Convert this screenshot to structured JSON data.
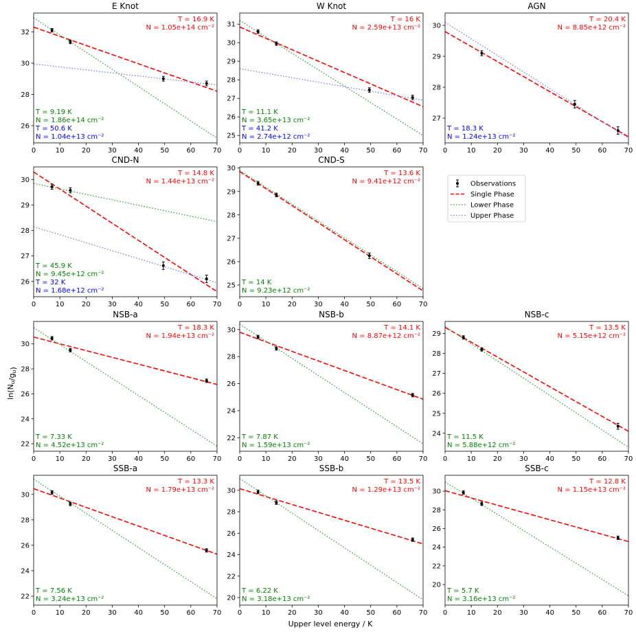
{
  "figure": {
    "xlabel": "Upper level energy  /  K",
    "ylabel": "ln(N_u/g_u)"
  },
  "legend": {
    "placement": "right of middle row",
    "items": [
      {
        "label": "Observations",
        "style": "errorbar",
        "color": "#000000"
      },
      {
        "label": "Single Phase",
        "style": "dashed",
        "color": "#ff0000"
      },
      {
        "label": "Lower Phase",
        "style": "dotted",
        "color": "#2ca02c"
      },
      {
        "label": "Upper Phase",
        "style": "dotted",
        "color": "#7777ee"
      }
    ]
  },
  "colors": {
    "single": "#ff0000",
    "lower": "#2ca02c",
    "upper": "#7777ee",
    "single_text": "#ff0000",
    "lower_text": "#008000",
    "upper_text": "#0000ff"
  },
  "chart_data": [
    {
      "type": "scatter",
      "title": "E Knot",
      "xlim": [
        0,
        70
      ],
      "ylim": [
        24.9,
        33.2
      ],
      "xticks": [
        0,
        10,
        20,
        30,
        40,
        50,
        60,
        70
      ],
      "yticks": [
        26,
        28,
        30,
        32
      ],
      "observations": [
        {
          "x": 7,
          "y": 32.1,
          "err": 0.1
        },
        {
          "x": 14,
          "y": 31.35,
          "err": 0.1
        },
        {
          "x": 49.5,
          "y": 29.0,
          "err": 0.15
        },
        {
          "x": 66,
          "y": 28.7,
          "err": 0.15
        }
      ],
      "fits": [
        {
          "name": "Single Phase",
          "y0": 32.3,
          "y70": 28.2
        },
        {
          "name": "Lower Phase",
          "y0": 32.9,
          "y70": 25.2
        },
        {
          "name": "Upper Phase",
          "y0": 29.95,
          "y70": 28.6
        }
      ],
      "labels": [
        {
          "phase": "single",
          "T": "T = 16.9 K",
          "N": "N = 1.05e+14 cm⁻²"
        },
        {
          "phase": "lower",
          "T": "T = 9.19 K",
          "N": "N = 1.86e+14 cm⁻²"
        },
        {
          "phase": "upper",
          "T": "T = 50.6 K",
          "N": "N = 1.04e+13 cm⁻²"
        }
      ]
    },
    {
      "type": "scatter",
      "title": "W Knot",
      "xlim": [
        0,
        70
      ],
      "ylim": [
        24.6,
        31.6
      ],
      "xticks": [
        0,
        10,
        20,
        30,
        40,
        50,
        60,
        70
      ],
      "yticks": [
        25,
        26,
        27,
        28,
        29,
        30,
        31
      ],
      "observations": [
        {
          "x": 7,
          "y": 30.6,
          "err": 0.1
        },
        {
          "x": 14,
          "y": 29.95,
          "err": 0.08
        },
        {
          "x": 49.5,
          "y": 27.45,
          "err": 0.12
        },
        {
          "x": 66,
          "y": 27.05,
          "err": 0.12
        }
      ],
      "fits": [
        {
          "name": "Single Phase",
          "y0": 30.85,
          "y70": 26.55
        },
        {
          "name": "Lower Phase",
          "y0": 31.2,
          "y70": 25.0
        },
        {
          "name": "Upper Phase",
          "y0": 28.6,
          "y70": 26.9
        }
      ],
      "labels": [
        {
          "phase": "single",
          "T": "T = 16 K",
          "N": "N = 2.59e+13 cm⁻²"
        },
        {
          "phase": "lower",
          "T": "T = 11.1 K",
          "N": "N = 3.65e+13 cm⁻²"
        },
        {
          "phase": "upper",
          "T": "T = 41.2 K",
          "N": "N = 2.74e+12 cm⁻²"
        }
      ]
    },
    {
      "type": "scatter",
      "title": "AGN",
      "xlim": [
        0,
        70
      ],
      "ylim": [
        26.2,
        30.4
      ],
      "xticks": [
        0,
        10,
        20,
        30,
        40,
        50,
        60,
        70
      ],
      "yticks": [
        27,
        28,
        29,
        30
      ],
      "observations": [
        {
          "x": 14,
          "y": 29.1,
          "err": 0.08
        },
        {
          "x": 49.5,
          "y": 27.45,
          "err": 0.12
        },
        {
          "x": 66,
          "y": 26.6,
          "err": 0.12
        }
      ],
      "fits": [
        {
          "name": "Single Phase",
          "y0": 29.8,
          "y70": 26.4
        },
        {
          "name": "Upper Phase",
          "y0": 30.1,
          "y70": 26.35
        }
      ],
      "labels": [
        {
          "phase": "single",
          "T": "T = 20.4 K",
          "N": "N = 8.85e+12 cm⁻²"
        },
        {
          "phase": "upper",
          "T": "T = 18.3 K",
          "N": "N = 1.24e+13 cm⁻²"
        }
      ]
    },
    {
      "type": "scatter",
      "title": "CND-N",
      "xlim": [
        0,
        70
      ],
      "ylim": [
        25.4,
        30.5
      ],
      "xticks": [
        0,
        10,
        20,
        30,
        40,
        50,
        60,
        70
      ],
      "yticks": [
        26,
        27,
        28,
        29,
        30
      ],
      "observations": [
        {
          "x": 7,
          "y": 29.72,
          "err": 0.1
        },
        {
          "x": 14,
          "y": 29.58,
          "err": 0.1
        },
        {
          "x": 49.5,
          "y": 26.62,
          "err": 0.15
        },
        {
          "x": 66,
          "y": 26.1,
          "err": 0.15
        }
      ],
      "fits": [
        {
          "name": "Single Phase",
          "y0": 30.3,
          "y70": 25.6
        },
        {
          "name": "Lower Phase",
          "y0": 29.85,
          "y70": 28.35
        },
        {
          "name": "Upper Phase",
          "y0": 28.15,
          "y70": 25.95
        }
      ],
      "labels": [
        {
          "phase": "single",
          "T": "T = 14.8 K",
          "N": "N = 1.44e+13 cm⁻²"
        },
        {
          "phase": "lower",
          "T": "T = 45.9 K",
          "N": "N = 9.45e+12 cm⁻²"
        },
        {
          "phase": "upper",
          "T": "T = 32 K",
          "N": "N = 1.68e+12 cm⁻²"
        }
      ]
    },
    {
      "type": "scatter",
      "title": "CND-S",
      "xlim": [
        0,
        70
      ],
      "ylim": [
        24.5,
        30.05
      ],
      "xticks": [
        0,
        10,
        20,
        30,
        40,
        50,
        60,
        70
      ],
      "yticks": [
        25,
        26,
        27,
        28,
        29,
        30
      ],
      "observations": [
        {
          "x": 7,
          "y": 29.35,
          "err": 0.08
        },
        {
          "x": 14,
          "y": 28.85,
          "err": 0.08
        },
        {
          "x": 49.5,
          "y": 26.25,
          "err": 0.12
        }
      ],
      "fits": [
        {
          "name": "Single Phase",
          "y0": 29.85,
          "y70": 24.75
        },
        {
          "name": "Lower Phase",
          "y0": 29.9,
          "y70": 24.85
        }
      ],
      "labels": [
        {
          "phase": "single",
          "T": "T = 13.6 K",
          "N": "N = 9.41e+12 cm⁻²"
        },
        {
          "phase": "lower",
          "T": "T = 14 K",
          "N": "N = 9.23e+12 cm⁻²"
        }
      ]
    },
    {
      "type": "scatter",
      "title": "NSB-a",
      "xlim": [
        0,
        70
      ],
      "ylim": [
        21.4,
        31.8
      ],
      "xticks": [
        0,
        10,
        20,
        30,
        40,
        50,
        60,
        70
      ],
      "yticks": [
        22,
        24,
        26,
        28,
        30
      ],
      "observations": [
        {
          "x": 7,
          "y": 30.45,
          "err": 0.1
        },
        {
          "x": 14,
          "y": 29.5,
          "err": 0.08
        },
        {
          "x": 66,
          "y": 27.05,
          "err": 0.1
        }
      ],
      "fits": [
        {
          "name": "Single Phase",
          "y0": 30.55,
          "y70": 26.75
        },
        {
          "name": "Lower Phase",
          "y0": 31.3,
          "y70": 21.8
        }
      ],
      "labels": [
        {
          "phase": "single",
          "T": "T = 18.3 K",
          "N": "N = 1.94e+13 cm⁻²"
        },
        {
          "phase": "lower",
          "T": "T = 7.33 K",
          "N": "N = 4.52e+13 cm⁻²"
        }
      ]
    },
    {
      "type": "scatter",
      "title": "NSB-b",
      "xlim": [
        0,
        70
      ],
      "ylim": [
        21.0,
        30.6
      ],
      "xticks": [
        0,
        10,
        20,
        30,
        40,
        50,
        60,
        70
      ],
      "yticks": [
        22,
        24,
        26,
        28,
        30
      ],
      "observations": [
        {
          "x": 7,
          "y": 29.45,
          "err": 0.1
        },
        {
          "x": 14,
          "y": 28.6,
          "err": 0.08
        },
        {
          "x": 66,
          "y": 25.15,
          "err": 0.12
        }
      ],
      "fits": [
        {
          "name": "Single Phase",
          "y0": 29.8,
          "y70": 24.85
        },
        {
          "name": "Lower Phase",
          "y0": 30.4,
          "y70": 21.55
        }
      ],
      "labels": [
        {
          "phase": "single",
          "T": "T = 14.1 K",
          "N": "N = 8.87e+12 cm⁻²"
        },
        {
          "phase": "lower",
          "T": "T = 7.87 K",
          "N": "N = 1.59e+13 cm⁻²"
        }
      ]
    },
    {
      "type": "scatter",
      "title": "NSB-c",
      "xlim": [
        0,
        70
      ],
      "ylim": [
        23.1,
        29.6
      ],
      "xticks": [
        0,
        10,
        20,
        30,
        40,
        50,
        60,
        70
      ],
      "yticks": [
        24,
        25,
        26,
        27,
        28,
        29
      ],
      "observations": [
        {
          "x": 7,
          "y": 28.8,
          "err": 0.08
        },
        {
          "x": 14,
          "y": 28.2,
          "err": 0.08
        },
        {
          "x": 66,
          "y": 24.35,
          "err": 0.15
        }
      ],
      "fits": [
        {
          "name": "Single Phase",
          "y0": 29.3,
          "y70": 24.1
        },
        {
          "name": "Lower Phase",
          "y0": 29.35,
          "y70": 23.3
        }
      ],
      "labels": [
        {
          "phase": "single",
          "T": "T = 13.5 K",
          "N": "N = 5.15e+12 cm⁻²"
        },
        {
          "phase": "lower",
          "T": "T = 11.5 K",
          "N": "N = 5.88e+12 cm⁻²"
        }
      ]
    },
    {
      "type": "scatter",
      "title": "SSB-a",
      "xlim": [
        0,
        70
      ],
      "ylim": [
        21.3,
        31.5
      ],
      "xticks": [
        0,
        10,
        20,
        30,
        40,
        50,
        60,
        70
      ],
      "yticks": [
        22,
        24,
        26,
        28,
        30
      ],
      "observations": [
        {
          "x": 7,
          "y": 30.15,
          "err": 0.1
        },
        {
          "x": 14,
          "y": 29.25,
          "err": 0.08
        },
        {
          "x": 66,
          "y": 25.6,
          "err": 0.12
        }
      ],
      "fits": [
        {
          "name": "Single Phase",
          "y0": 30.45,
          "y70": 25.3
        },
        {
          "name": "Lower Phase",
          "y0": 31.2,
          "y70": 21.8
        }
      ],
      "labels": [
        {
          "phase": "single",
          "T": "T = 13.3 K",
          "N": "N = 1.79e+13 cm⁻²"
        },
        {
          "phase": "lower",
          "T": "T = 7.56 K",
          "N": "N = 3.24e+13 cm⁻²"
        }
      ]
    },
    {
      "type": "scatter",
      "title": "SSB-b",
      "xlim": [
        0,
        70
      ],
      "ylim": [
        19.3,
        31.4
      ],
      "xticks": [
        0,
        10,
        20,
        30,
        40,
        50,
        60,
        70
      ],
      "yticks": [
        20,
        22,
        24,
        26,
        28,
        30
      ],
      "observations": [
        {
          "x": 7,
          "y": 29.85,
          "err": 0.1
        },
        {
          "x": 14,
          "y": 28.85,
          "err": 0.08
        },
        {
          "x": 66,
          "y": 25.4,
          "err": 0.12
        }
      ],
      "fits": [
        {
          "name": "Single Phase",
          "y0": 30.15,
          "y70": 25.0
        },
        {
          "name": "Lower Phase",
          "y0": 31.1,
          "y70": 19.8
        }
      ],
      "labels": [
        {
          "phase": "single",
          "T": "T = 13.5 K",
          "N": "N = 1.29e+13 cm⁻²"
        },
        {
          "phase": "lower",
          "T": "T = 6.22 K",
          "N": "N = 3.18e+13 cm⁻²"
        }
      ]
    },
    {
      "type": "scatter",
      "title": "SSB-c",
      "xlim": [
        0,
        70
      ],
      "ylim": [
        17.8,
        31.7
      ],
      "xticks": [
        0,
        10,
        20,
        30,
        40,
        50,
        60,
        70
      ],
      "yticks": [
        20,
        22,
        24,
        26,
        28,
        30
      ],
      "observations": [
        {
          "x": 7,
          "y": 29.85,
          "err": 0.1
        },
        {
          "x": 14,
          "y": 28.65,
          "err": 0.08
        },
        {
          "x": 66,
          "y": 25.0,
          "err": 0.12
        }
      ],
      "fits": [
        {
          "name": "Single Phase",
          "y0": 30.05,
          "y70": 24.6
        },
        {
          "name": "Lower Phase",
          "y0": 31.0,
          "y70": 18.8
        }
      ],
      "labels": [
        {
          "phase": "single",
          "T": "T = 12.8 K",
          "N": "N = 1.15e+13 cm⁻²"
        },
        {
          "phase": "lower",
          "T": "T = 5.7 K",
          "N": "N = 3.16e+13 cm⁻²"
        }
      ]
    }
  ]
}
